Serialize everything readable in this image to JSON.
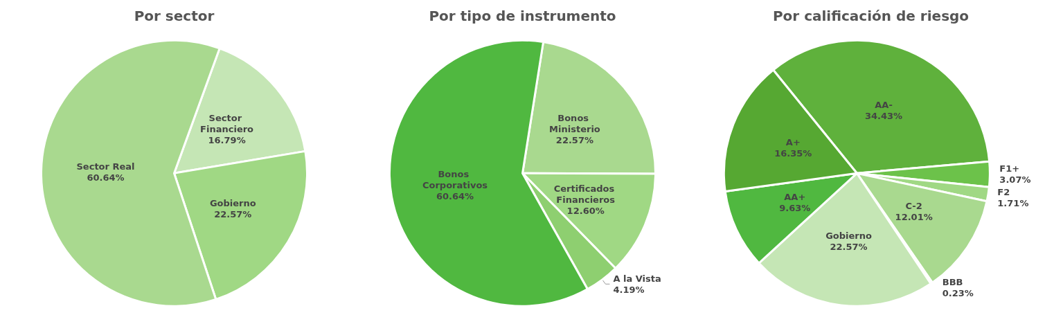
{
  "chart_data": [
    {
      "type": "pie",
      "title": "Por sector",
      "categories": [
        "Sector Financiero",
        "Gobierno",
        "Sector Real"
      ],
      "values": [
        16.79,
        22.57,
        60.64
      ],
      "colors": [
        "#c5e6b5",
        "#a0d884",
        "#a9d98f"
      ],
      "value_labels": [
        "16.79%",
        "22.57%",
        "60.64%"
      ]
    },
    {
      "type": "pie",
      "title": "Por tipo de instrumento",
      "categories": [
        "Bonos Ministerio",
        "Certificados Financieros",
        "A la Vista",
        "Bonos Corporativos"
      ],
      "values": [
        22.57,
        12.6,
        4.19,
        60.64
      ],
      "colors": [
        "#a9d98f",
        "#a0d884",
        "#8ecf70",
        "#50b840"
      ],
      "value_labels": [
        "22.57%",
        "12.60%",
        "4.19%",
        "60.64%"
      ]
    },
    {
      "type": "pie",
      "title": "Por calificación de riesgo",
      "categories": [
        "AA-",
        "F1+",
        "F2",
        "C-2",
        "BBB",
        "Gobierno",
        "AA+",
        "A+"
      ],
      "values": [
        34.43,
        3.07,
        1.71,
        12.01,
        0.23,
        22.57,
        9.63,
        16.35
      ],
      "colors": [
        "#5fb13c",
        "#6cc24a",
        "#a0d884",
        "#a9d98f",
        "#c5e6b5",
        "#c5e6b5",
        "#50b840",
        "#56a832"
      ],
      "value_labels": [
        "34.43%",
        "3.07%",
        "1.71%",
        "12.01%",
        "0.23%",
        "22.57%",
        "9.63%",
        "16.35%"
      ]
    }
  ]
}
